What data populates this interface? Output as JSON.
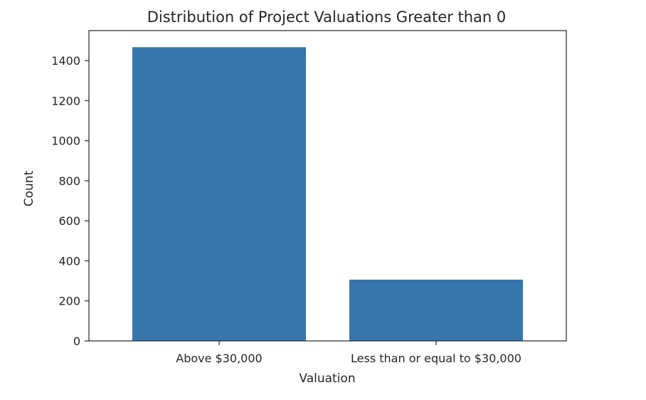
{
  "chart_data": {
    "type": "bar",
    "title": "Distribution of Project Valuations Greater than 0",
    "xlabel": "Valuation",
    "ylabel": "Count",
    "categories": [
      "Above $30,000",
      "Less than or equal to $30,000"
    ],
    "values": [
      1467,
      306
    ],
    "ylim": [
      0,
      1550
    ],
    "yticks": [
      0,
      200,
      400,
      600,
      800,
      1000,
      1200,
      1400
    ],
    "grid": false,
    "bar_color": "#3776ab",
    "axis_color": "#262626"
  }
}
